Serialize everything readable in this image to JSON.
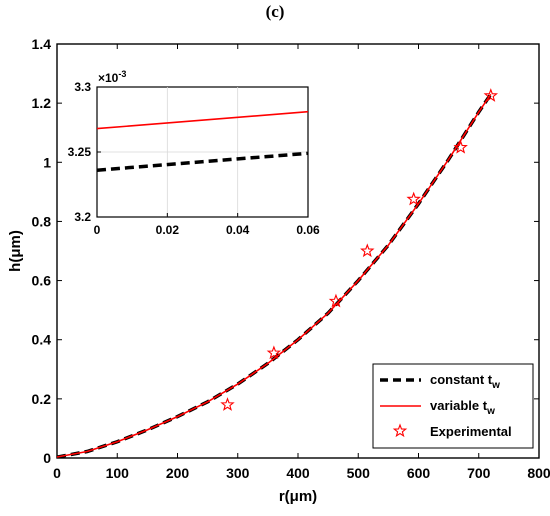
{
  "panel_label": "(c)",
  "chart_data": [
    {
      "type": "line",
      "xlabel": "r(μm)",
      "ylabel": "h(μm)",
      "xlim": [
        0,
        800
      ],
      "ylim": [
        0,
        1.4
      ],
      "xticks": [
        "0",
        "100",
        "200",
        "300",
        "400",
        "500",
        "600",
        "700",
        "800"
      ],
      "yticks": [
        "0",
        "0.2",
        "0.4",
        "0.6",
        "0.8",
        "1",
        "1.2",
        "1.4"
      ],
      "grid": false,
      "legend_position": "bottom-right",
      "legend": [
        {
          "label": "constant t",
          "subscript": "w",
          "style": "black-dashed"
        },
        {
          "label": "variable t",
          "subscript": "w",
          "style": "red-solid"
        },
        {
          "label": "Experimental",
          "subscript": "",
          "style": "red-star-marker"
        }
      ],
      "series": [
        {
          "name": "constant t_w",
          "color": "#000000",
          "dashed": true,
          "x": [
            0,
            50,
            100,
            150,
            200,
            250,
            300,
            350,
            400,
            450,
            500,
            550,
            600,
            650,
            700,
            720
          ],
          "y": [
            0.003,
            0.022,
            0.055,
            0.095,
            0.14,
            0.19,
            0.25,
            0.32,
            0.4,
            0.49,
            0.6,
            0.72,
            0.86,
            1.01,
            1.17,
            1.23
          ]
        },
        {
          "name": "variable t_w",
          "color": "#ff0000",
          "dashed": false,
          "x": [
            0,
            50,
            100,
            150,
            200,
            250,
            300,
            350,
            400,
            450,
            500,
            550,
            600,
            650,
            700,
            720
          ],
          "y": [
            0.0033,
            0.022,
            0.055,
            0.095,
            0.14,
            0.19,
            0.25,
            0.32,
            0.4,
            0.49,
            0.6,
            0.72,
            0.86,
            1.01,
            1.17,
            1.23
          ]
        },
        {
          "name": "Experimental",
          "color": "#ff0000",
          "marker": "star",
          "x": [
            283,
            360,
            463,
            515,
            592,
            670,
            720
          ],
          "y": [
            0.18,
            0.355,
            0.53,
            0.7,
            0.875,
            1.05,
            1.225
          ]
        }
      ]
    },
    {
      "type": "line",
      "inset": true,
      "xlim": [
        0,
        0.06
      ],
      "ylim": [
        3.2,
        3.3
      ],
      "xticks": [
        "0",
        "0.02",
        "0.04",
        "0.06"
      ],
      "yticks": [
        "3.2",
        "3.25",
        "3.3"
      ],
      "y_exponent": "×10",
      "y_exponent_power": "-3",
      "grid": true,
      "series": [
        {
          "name": "variable t_w",
          "color": "#ff0000",
          "dashed": false,
          "x": [
            0,
            0.06
          ],
          "y": [
            3.268,
            3.281
          ]
        },
        {
          "name": "constant t_w",
          "color": "#000000",
          "dashed": true,
          "x": [
            0,
            0.06
          ],
          "y": [
            3.236,
            3.249
          ]
        }
      ]
    }
  ]
}
